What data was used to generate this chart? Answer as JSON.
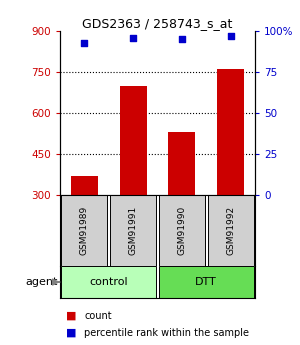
{
  "title": "GDS2363 / 258743_s_at",
  "samples": [
    "GSM91989",
    "GSM91991",
    "GSM91990",
    "GSM91992"
  ],
  "bar_values": [
    370,
    700,
    530,
    760
  ],
  "dot_values": [
    93,
    96,
    95,
    97
  ],
  "bar_color": "#cc0000",
  "dot_color": "#0000cc",
  "ylim_left": [
    300,
    900
  ],
  "ylim_right": [
    0,
    100
  ],
  "yticks_left": [
    300,
    450,
    600,
    750,
    900
  ],
  "yticks_right": [
    0,
    25,
    50,
    75,
    100
  ],
  "ytick_labels_right": [
    "0",
    "25",
    "50",
    "75",
    "100%"
  ],
  "group_colors_control": "#b8ffb8",
  "group_colors_DTT": "#66dd55",
  "sample_box_color": "#d0d0d0",
  "background_color": "#ffffff",
  "bar_width": 0.55,
  "legend_count_label": "count",
  "legend_pct_label": "percentile rank within the sample"
}
